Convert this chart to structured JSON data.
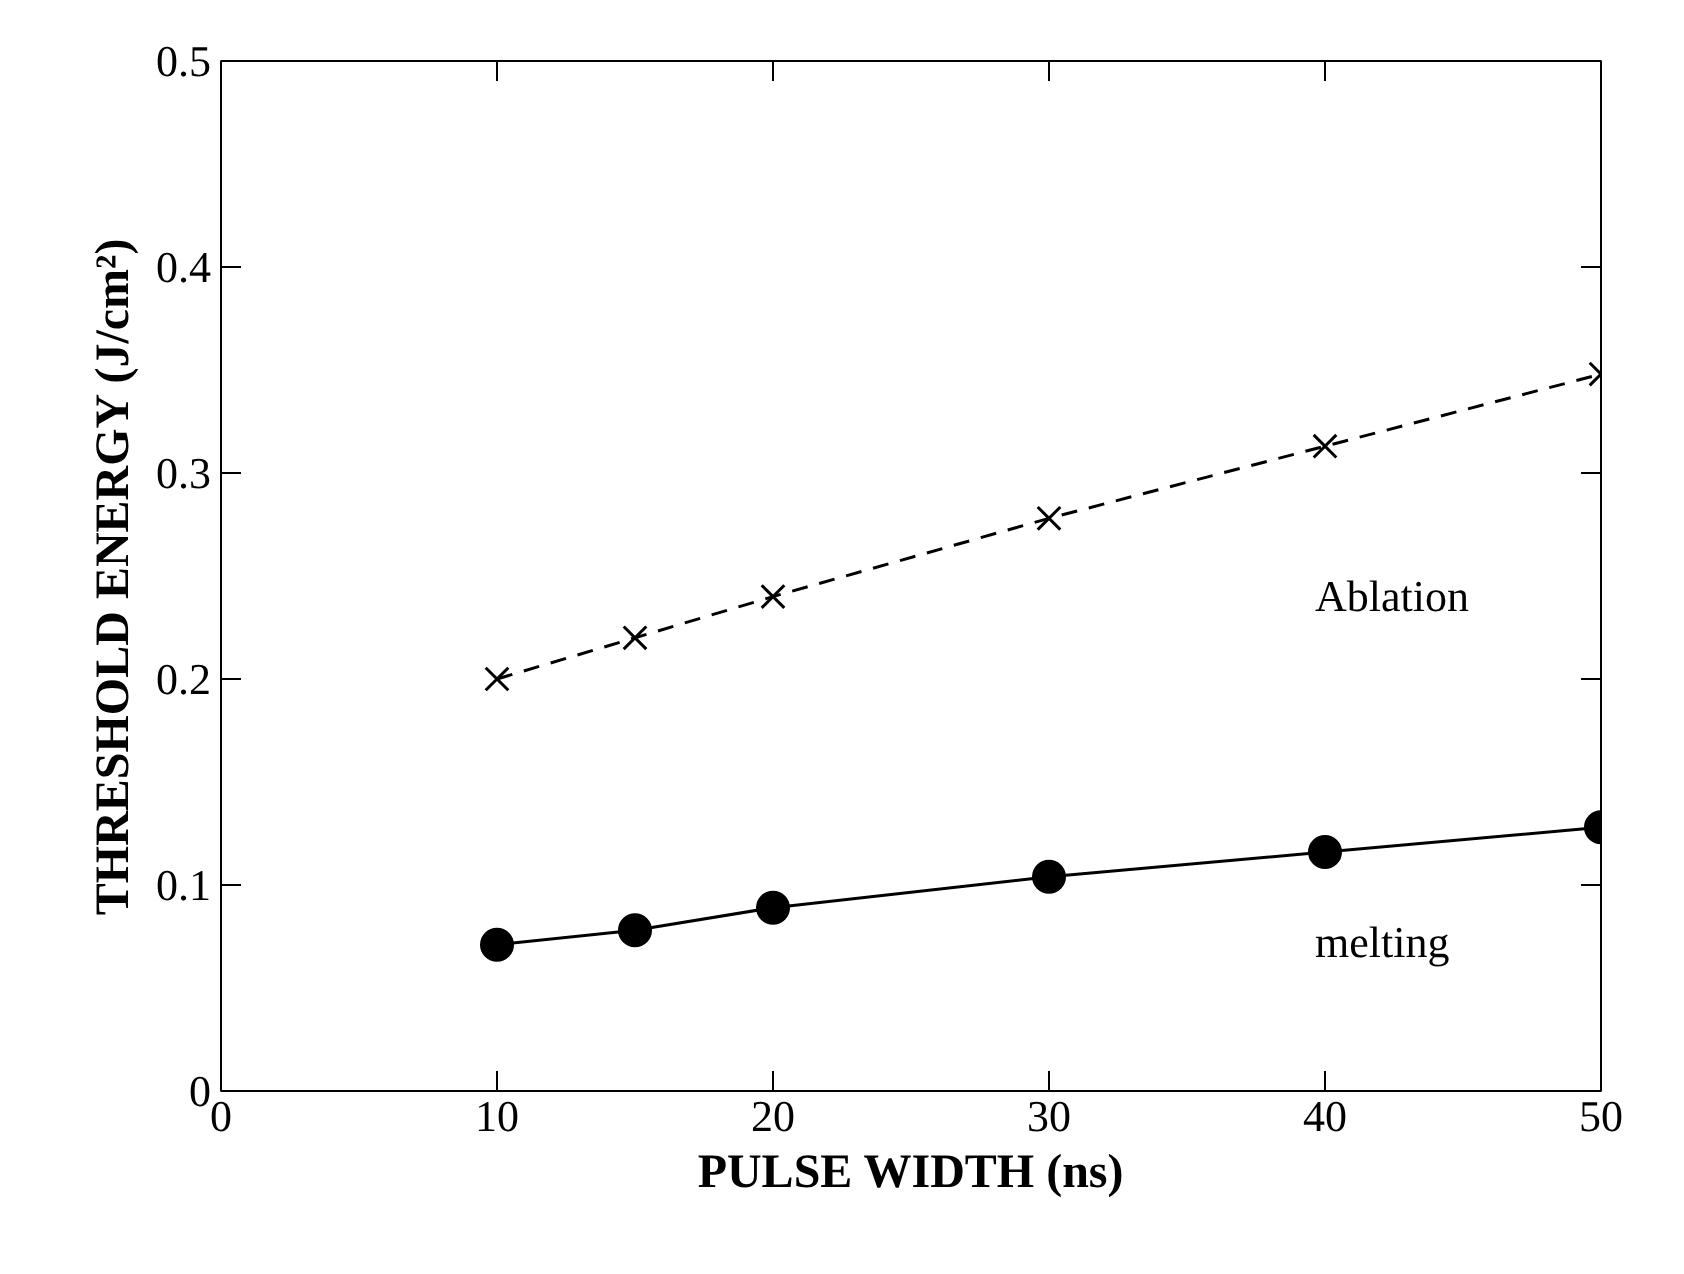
{
  "chart_data": {
    "type": "line",
    "xlabel": "PULSE WIDTH (ns)",
    "ylabel": "THRESHOLD ENERGY (J/cm²)",
    "x": [
      10,
      15,
      20,
      30,
      40,
      50
    ],
    "series": [
      {
        "color": "#000000",
        "values": [
          0.2,
          0.22,
          0.24,
          0.278,
          0.313,
          0.348
        ],
        "marker": "cross",
        "line_style": "dashed"
      },
      {
        "color": "#000000",
        "values": [
          0.071,
          0.078,
          0.089,
          0.104,
          0.116,
          0.128
        ],
        "marker": "circle",
        "line_style": "solid"
      }
    ],
    "annotations": [
      "Ablation",
      "melting"
    ],
    "xlim": [
      0,
      50
    ],
    "ylim": [
      0,
      0.5
    ],
    "xticks": [
      0,
      10,
      20,
      30,
      40,
      50
    ],
    "yticks": [
      0,
      0.1,
      0.2,
      0.3,
      0.4,
      0.5
    ],
    "grid": false
  }
}
